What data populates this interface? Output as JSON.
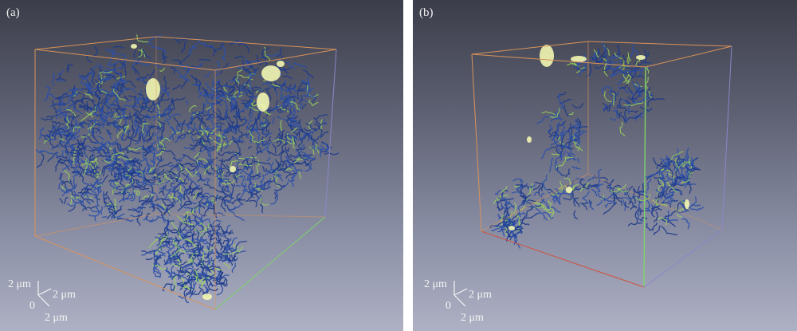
{
  "panels": [
    {
      "id": "a",
      "label": "(a)",
      "axes": {
        "vertical": "2 μm",
        "depth": "2 μm",
        "horizontal": "2 μm",
        "origin": "0"
      }
    },
    {
      "id": "b",
      "label": "(b)",
      "axes": {
        "vertical": "2 μm",
        "depth": "2 μm",
        "horizontal": "2 μm",
        "origin": "0"
      }
    }
  ],
  "colors": {
    "background_top": "#3b3d4a",
    "background_bottom": "#aeb1c4",
    "box_edge_orange": "#d9935a",
    "box_edge_green": "#7fd36a",
    "box_edge_red": "#d0503a",
    "network_blue": "#1d3a8a",
    "network_highlight": "#9ad45a",
    "blob_yellow": "#f3f6b0"
  }
}
